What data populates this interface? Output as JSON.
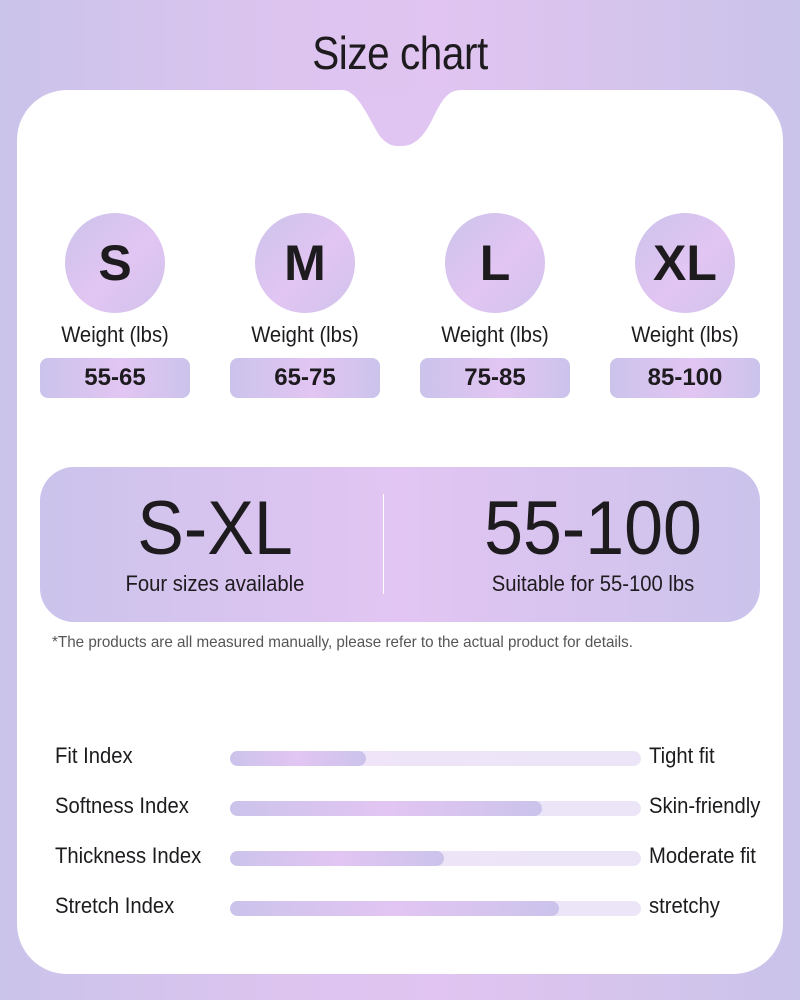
{
  "title": "Size chart",
  "sizes": [
    {
      "label": "S",
      "weight_label": "Weight (lbs)",
      "range": "55-65"
    },
    {
      "label": "M",
      "weight_label": "Weight (lbs)",
      "range": "65-75"
    },
    {
      "label": "L",
      "weight_label": "Weight (lbs)",
      "range": "75-85"
    },
    {
      "label": "XL",
      "weight_label": "Weight (lbs)",
      "range": "85-100"
    }
  ],
  "summary": {
    "left": {
      "value": "S-XL",
      "caption": "Four sizes available"
    },
    "right": {
      "value": "55-100",
      "caption": "Suitable for 55-100 lbs"
    }
  },
  "note": "*The products are all measured manually, please refer to the actual product for details.",
  "indices": [
    {
      "label": "Fit Index",
      "result": "Tight fit",
      "level_percent": 33
    },
    {
      "label": "Softness Index",
      "result": "Skin-friendly",
      "level_percent": 76
    },
    {
      "label": "Thickness Index",
      "result": "Moderate fit",
      "level_percent": 52
    },
    {
      "label": "Stretch Index",
      "result": "stretchy",
      "level_percent": 80
    }
  ],
  "colors": {
    "lavender": "#cbc3eb",
    "pink_lilac": "#e2c5f2",
    "text": "#1e1b1f"
  }
}
